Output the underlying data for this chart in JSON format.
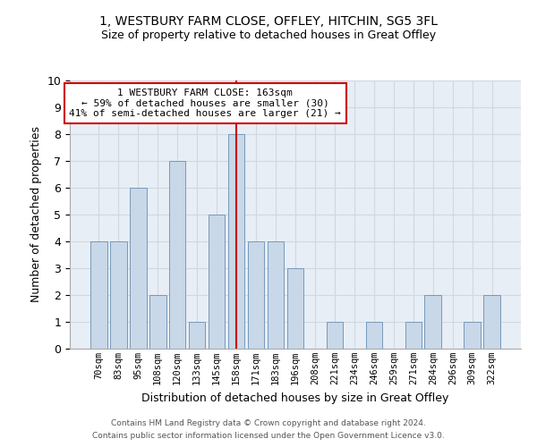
{
  "title1": "1, WESTBURY FARM CLOSE, OFFLEY, HITCHIN, SG5 3FL",
  "title2": "Size of property relative to detached houses in Great Offley",
  "xlabel": "Distribution of detached houses by size in Great Offley",
  "ylabel": "Number of detached properties",
  "categories": [
    "70sqm",
    "83sqm",
    "95sqm",
    "108sqm",
    "120sqm",
    "133sqm",
    "145sqm",
    "158sqm",
    "171sqm",
    "183sqm",
    "196sqm",
    "208sqm",
    "221sqm",
    "234sqm",
    "246sqm",
    "259sqm",
    "271sqm",
    "284sqm",
    "296sqm",
    "309sqm",
    "322sqm"
  ],
  "values": [
    4,
    4,
    6,
    2,
    7,
    1,
    5,
    8,
    4,
    4,
    3,
    0,
    1,
    0,
    1,
    0,
    1,
    2,
    0,
    1,
    2
  ],
  "highlight_index": 7,
  "bar_color": "#c8d8e8",
  "bar_edgecolor": "#7799bb",
  "highlight_line_color": "#cc0000",
  "annotation_text": "1 WESTBURY FARM CLOSE: 163sqm\n← 59% of detached houses are smaller (30)\n41% of semi-detached houses are larger (21) →",
  "annotation_box_color": "#ffffff",
  "annotation_box_edgecolor": "#cc0000",
  "grid_color": "#d0d8e0",
  "bg_color": "#e8eef5",
  "ylim": [
    0,
    10
  ],
  "yticks": [
    0,
    1,
    2,
    3,
    4,
    5,
    6,
    7,
    8,
    9,
    10
  ],
  "footnote1": "Contains HM Land Registry data © Crown copyright and database right 2024.",
  "footnote2": "Contains public sector information licensed under the Open Government Licence v3.0."
}
